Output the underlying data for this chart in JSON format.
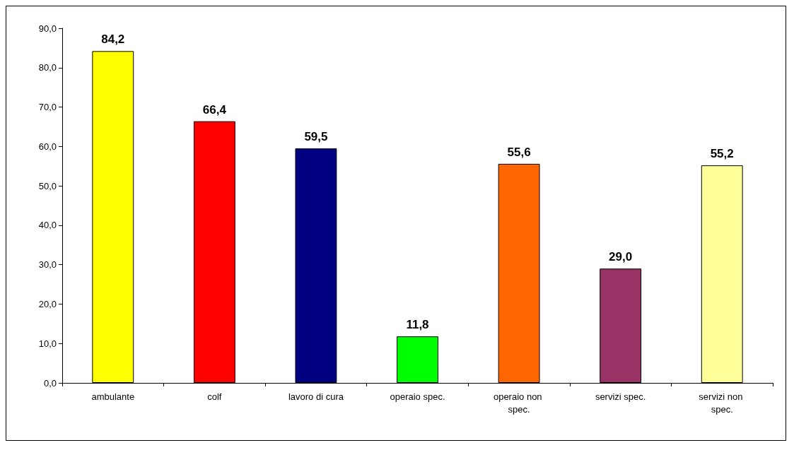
{
  "chart_data": {
    "type": "bar",
    "categories": [
      "ambulante",
      "colf",
      "lavoro di cura",
      "operaio spec.",
      "operaio non spec.",
      "servizi spec.",
      "servizi non spec."
    ],
    "values": [
      84.2,
      66.4,
      59.5,
      11.8,
      55.6,
      29.0,
      55.2
    ],
    "value_labels": [
      "84,2",
      "66,4",
      "59,5",
      "11,8",
      "55,6",
      "29,0",
      "55,2"
    ],
    "colors": [
      "#ffff00",
      "#ff0000",
      "#000080",
      "#00ff00",
      "#ff6600",
      "#993366",
      "#ffff99"
    ],
    "ylim": [
      0,
      90
    ],
    "yticks": [
      {
        "value": 0,
        "label": "0,0"
      },
      {
        "value": 10,
        "label": "10,0"
      },
      {
        "value": 20,
        "label": "20,0"
      },
      {
        "value": 30,
        "label": "30,0"
      },
      {
        "value": 40,
        "label": "40,0"
      },
      {
        "value": 50,
        "label": "50,0"
      },
      {
        "value": 60,
        "label": "60,0"
      },
      {
        "value": 70,
        "label": "70,0"
      },
      {
        "value": 80,
        "label": "80,0"
      },
      {
        "value": 90,
        "label": "90,0"
      }
    ],
    "grid": false
  }
}
